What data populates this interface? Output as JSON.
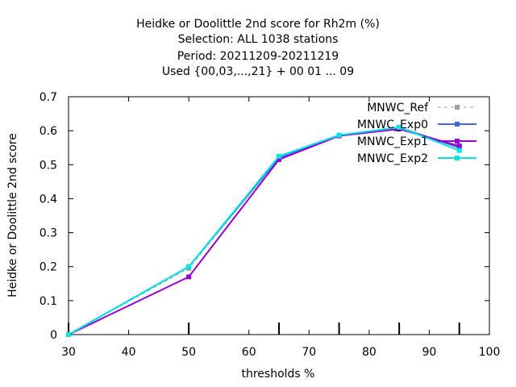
{
  "chart_data": {
    "type": "line",
    "title": [
      "Heidke or Doolittle 2nd score  for Rh2m (%)",
      "Selection: ALL   1038 stations",
      "Period: 20211209-20211219",
      "Used {00,03,...,21} + 00 01 ... 09"
    ],
    "xlabel": "thresholds %",
    "ylabel": "Heidke or Doolittle 2nd score",
    "xlim": [
      30,
      100
    ],
    "ylim": [
      0,
      0.7
    ],
    "xticks": [
      "30",
      "40",
      "50",
      "60",
      "70",
      "80",
      "90",
      "100"
    ],
    "yticks": [
      "0",
      "0.1",
      "0.2",
      "0.3",
      "0.4",
      "0.5",
      "0.6",
      "0.7"
    ],
    "grid": false,
    "legend_position": "top-right",
    "x": [
      30,
      50,
      65,
      75,
      85,
      95
    ],
    "series": [
      {
        "name": "MNWC_Ref",
        "color": "#a0a0a0",
        "dashed": true,
        "values": [
          0.0,
          0.195,
          0.52,
          0.585,
          0.61,
          0.55
        ]
      },
      {
        "name": "MNWC_Exp0",
        "color": "#4169e1",
        "dashed": false,
        "values": [
          0.0,
          0.2,
          0.52,
          0.585,
          0.61,
          0.55
        ]
      },
      {
        "name": "MNWC_Exp1",
        "color": "#9400d3",
        "dashed": false,
        "values": [
          0.0,
          0.17,
          0.515,
          0.585,
          0.605,
          0.555
        ]
      },
      {
        "name": "MNWC_Exp2",
        "color": "#00e5e5",
        "dashed": false,
        "values": [
          0.0,
          0.2,
          0.525,
          0.587,
          0.61,
          0.542
        ]
      }
    ]
  }
}
